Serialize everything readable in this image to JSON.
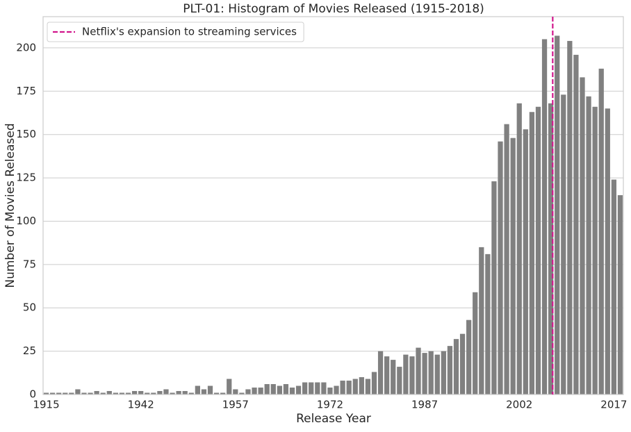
{
  "chart_data": {
    "type": "bar",
    "title": "PLT-01: Histogram of Movies Released (1915-2018)",
    "x_label": "Release Year",
    "y_label": "Number of Movies Released",
    "categories": [
      "1915",
      null,
      null,
      null,
      null,
      null,
      null,
      null,
      null,
      null,
      null,
      null,
      null,
      null,
      null,
      "1942",
      null,
      null,
      null,
      null,
      null,
      null,
      null,
      null,
      null,
      null,
      null,
      null,
      null,
      null,
      "1957",
      null,
      null,
      null,
      null,
      null,
      null,
      null,
      null,
      null,
      null,
      null,
      null,
      null,
      null,
      "1972",
      null,
      null,
      null,
      null,
      null,
      null,
      null,
      null,
      null,
      null,
      null,
      null,
      null,
      null,
      "1987",
      null,
      null,
      null,
      null,
      null,
      null,
      null,
      null,
      null,
      null,
      null,
      null,
      null,
      null,
      "2002",
      null,
      null,
      null,
      null,
      null,
      null,
      null,
      null,
      null,
      null,
      null,
      null,
      null,
      null,
      "2017",
      null
    ],
    "values": [
      1,
      1,
      1,
      1,
      1,
      3,
      1,
      1,
      2,
      1,
      2,
      1,
      1,
      1,
      2,
      2,
      1,
      1,
      2,
      3,
      1,
      2,
      2,
      1,
      5,
      3,
      5,
      1,
      1,
      9,
      3,
      1,
      3,
      4,
      4,
      6,
      6,
      5,
      6,
      4,
      5,
      7,
      7,
      7,
      7,
      4,
      5,
      8,
      8,
      9,
      10,
      9,
      13,
      25,
      22,
      20,
      16,
      23,
      22,
      27,
      24,
      25,
      23,
      25,
      28,
      32,
      35,
      43,
      59,
      85,
      81,
      123,
      146,
      156,
      148,
      168,
      153,
      163,
      166,
      205,
      168,
      207,
      173,
      204,
      196,
      183,
      172,
      166,
      188,
      165,
      124,
      115
    ],
    "color": "#808080",
    "ylim": [
      0,
      218
    ],
    "yticks": [
      0,
      25,
      50,
      75,
      100,
      125,
      150,
      175,
      200
    ],
    "grid": true,
    "vline": {
      "x": 80.3,
      "label": "Netflix's expansion to streaming services",
      "color": "#d1168c"
    },
    "legend": "upper left"
  }
}
